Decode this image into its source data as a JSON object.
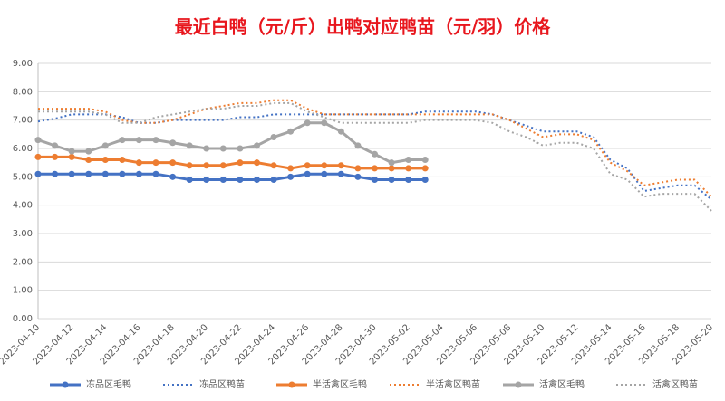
{
  "chart_data": {
    "type": "line",
    "title": "最近白鸭（元/斤）出鸭对应鸭苗（元/羽）价格",
    "categories": [
      "2023-04-10",
      null,
      "2023-04-12",
      null,
      "2023-04-14",
      null,
      "2023-04-16",
      null,
      "2023-04-18",
      null,
      "2023-04-20",
      null,
      "2023-04-22",
      null,
      "2023-04-24",
      null,
      "2023-04-26",
      null,
      "2023-04-28",
      null,
      "2023-04-30",
      null,
      "2023-05-02",
      null,
      "2023-05-04",
      null,
      "2023-05-06",
      null,
      "2023-05-08",
      null,
      "2023-05-10",
      null,
      "2023-05-12",
      null,
      "2023-05-14",
      null,
      "2023-05-16",
      null,
      "2023-05-18",
      null,
      "2023-05-20"
    ],
    "ylim": [
      0,
      9
    ],
    "yticks": [
      {
        "value": 0,
        "label": "0.00"
      },
      {
        "value": 1,
        "label": "1.00"
      },
      {
        "value": 2,
        "label": "2.00"
      },
      {
        "value": 3,
        "label": "3.00"
      },
      {
        "value": 4,
        "label": "4.00"
      },
      {
        "value": 5,
        "label": "5.00"
      },
      {
        "value": 6,
        "label": "6.00"
      },
      {
        "value": 7,
        "label": "7.00"
      },
      {
        "value": 8,
        "label": "8.00"
      },
      {
        "value": 9,
        "label": "9.00"
      }
    ],
    "grid": true,
    "legend": "bottom",
    "series": [
      {
        "name": "冻品区毛鸭",
        "color": "#4472c4",
        "dashed": false,
        "markers": true,
        "values": [
          5.1,
          5.1,
          5.1,
          5.1,
          5.1,
          5.1,
          5.1,
          5.1,
          5.0,
          4.9,
          4.9,
          4.9,
          4.9,
          4.9,
          4.9,
          5.0,
          5.1,
          5.1,
          5.1,
          5.0,
          4.9,
          4.9,
          4.9,
          4.9,
          null,
          null,
          null,
          null,
          null,
          null,
          null,
          null,
          null,
          null,
          null,
          null,
          null,
          null,
          null,
          null,
          null
        ]
      },
      {
        "name": "冻品区鸭苗",
        "color": "#4472c4",
        "dashed": true,
        "markers": false,
        "values": [
          6.95,
          7.05,
          7.2,
          7.2,
          7.2,
          7.1,
          6.9,
          6.9,
          7.0,
          7.0,
          7.0,
          7.0,
          7.1,
          7.1,
          7.2,
          7.2,
          7.2,
          7.2,
          7.2,
          7.2,
          7.2,
          7.2,
          7.2,
          7.3,
          7.3,
          7.3,
          7.3,
          7.2,
          7.0,
          6.8,
          6.6,
          6.6,
          6.6,
          6.4,
          5.6,
          5.3,
          4.5,
          4.6,
          4.7,
          4.7,
          4.2
        ]
      },
      {
        "name": "半活禽区毛鸭",
        "color": "#ed7d31",
        "dashed": false,
        "markers": true,
        "values": [
          5.7,
          5.7,
          5.7,
          5.6,
          5.6,
          5.6,
          5.5,
          5.5,
          5.5,
          5.4,
          5.4,
          5.4,
          5.5,
          5.5,
          5.4,
          5.3,
          5.4,
          5.4,
          5.4,
          5.3,
          5.3,
          5.3,
          5.3,
          5.3,
          null,
          null,
          null,
          null,
          null,
          null,
          null,
          null,
          null,
          null,
          null,
          null,
          null,
          null,
          null,
          null,
          null
        ]
      },
      {
        "name": "半活禽区鸭苗",
        "color": "#ed7d31",
        "dashed": true,
        "markers": false,
        "values": [
          7.4,
          7.4,
          7.4,
          7.4,
          7.3,
          7.0,
          6.9,
          6.9,
          7.0,
          7.2,
          7.4,
          7.5,
          7.6,
          7.6,
          7.7,
          7.7,
          7.4,
          7.2,
          7.2,
          7.2,
          7.2,
          7.2,
          7.2,
          7.2,
          7.2,
          7.2,
          7.2,
          7.2,
          7.0,
          6.7,
          6.4,
          6.5,
          6.5,
          6.3,
          5.5,
          5.2,
          4.7,
          4.8,
          4.9,
          4.9,
          4.3
        ]
      },
      {
        "name": "活禽区毛鸭",
        "color": "#a5a5a5",
        "dashed": false,
        "markers": true,
        "values": [
          6.3,
          6.1,
          5.9,
          5.9,
          6.1,
          6.3,
          6.3,
          6.3,
          6.2,
          6.1,
          6.0,
          6.0,
          6.0,
          6.1,
          6.4,
          6.6,
          6.9,
          6.9,
          6.6,
          6.1,
          5.8,
          5.5,
          5.6,
          5.6,
          null,
          null,
          null,
          null,
          null,
          null,
          null,
          null,
          null,
          null,
          null,
          null,
          null,
          null,
          null,
          null,
          null
        ]
      },
      {
        "name": "活禽区鸭苗",
        "color": "#a5a5a5",
        "dashed": true,
        "markers": false,
        "values": [
          7.3,
          7.3,
          7.3,
          7.3,
          7.2,
          6.9,
          6.9,
          7.1,
          7.2,
          7.3,
          7.4,
          7.4,
          7.5,
          7.5,
          7.6,
          7.6,
          7.3,
          7.1,
          6.9,
          6.9,
          6.9,
          6.9,
          6.9,
          7.0,
          7.0,
          7.0,
          7.0,
          6.9,
          6.6,
          6.4,
          6.1,
          6.2,
          6.2,
          6.0,
          5.1,
          4.9,
          4.3,
          4.4,
          4.4,
          4.4,
          3.8
        ]
      }
    ]
  }
}
